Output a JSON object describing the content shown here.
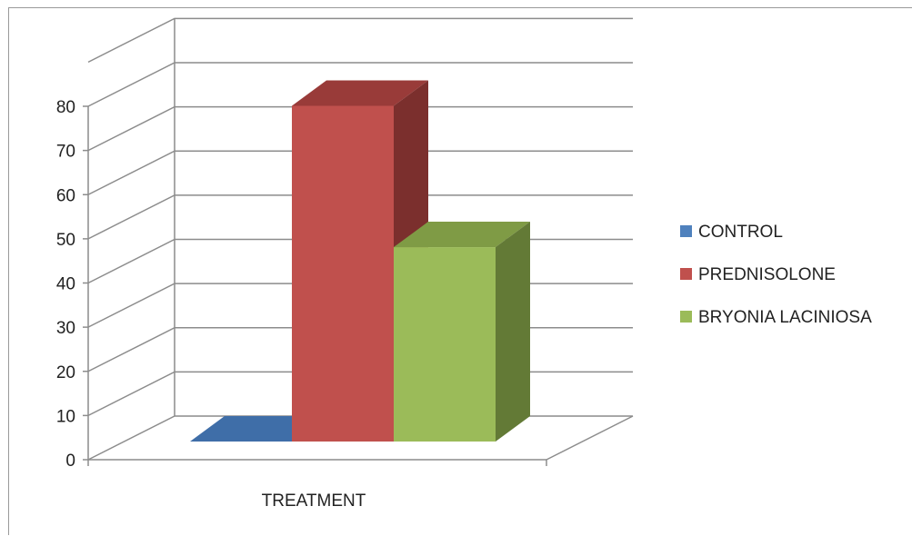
{
  "chart_data": {
    "type": "bar",
    "categories": [
      "TREATMENT"
    ],
    "series": [
      {
        "name": "CONTROL",
        "values": [
          0
        ],
        "color": "#4f81bd",
        "top": "#3f6ea8",
        "side": "#355d8f"
      },
      {
        "name": "PREDNISOLONE",
        "values": [
          76
        ],
        "color": "#c0504d",
        "top": "#993b39",
        "side": "#7b2f2d"
      },
      {
        "name": "BRYONIA LACINIOSA",
        "values": [
          44
        ],
        "color": "#9bbb59",
        "top": "#7f9b45",
        "side": "#637a36"
      }
    ],
    "xlabel": "TREATMENT",
    "ylim": [
      0,
      80
    ],
    "yticks": [
      0,
      10,
      20,
      30,
      40,
      50,
      60,
      70,
      80
    ],
    "grid": true,
    "legend_position": "right",
    "style": "3d-column"
  }
}
